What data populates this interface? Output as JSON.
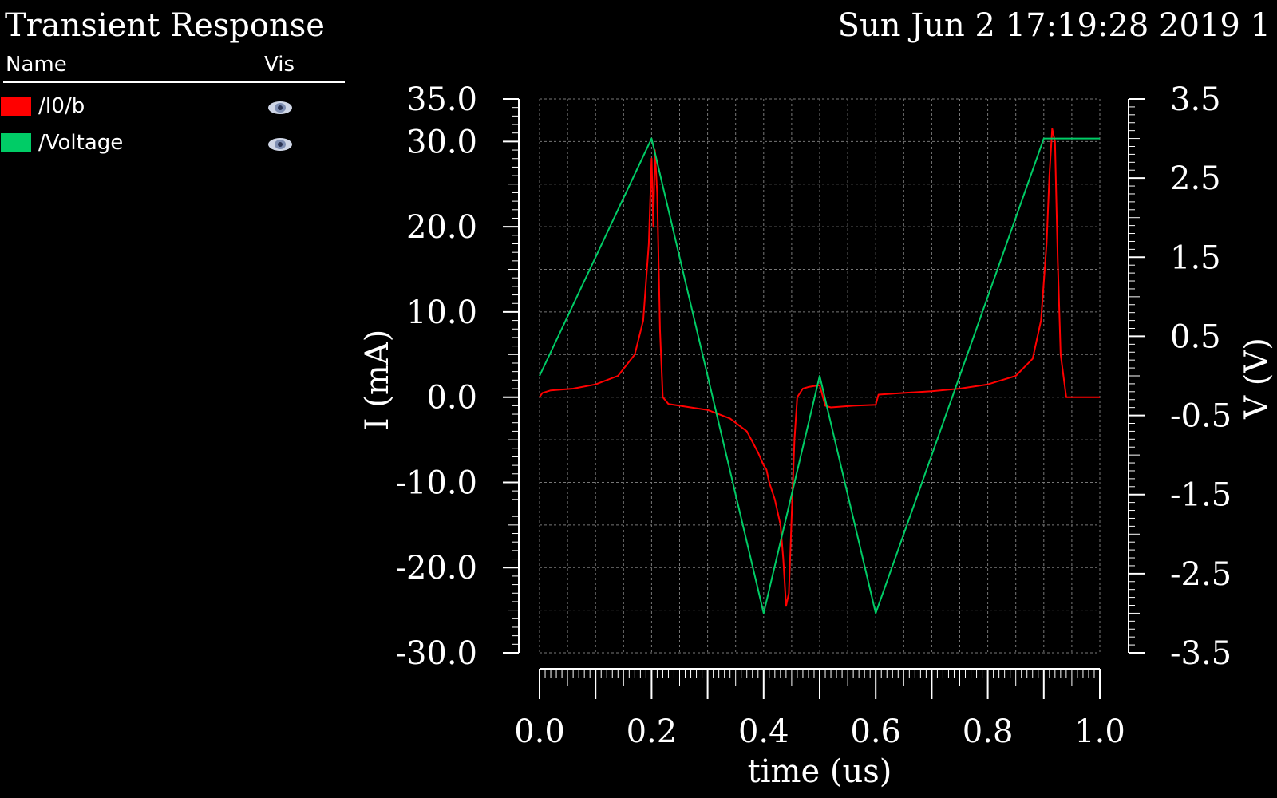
{
  "window": {
    "title": "Transient Response",
    "timestamp": "Sun Jun 2 17:19:28 2019 1"
  },
  "legend": {
    "name_header": "Name",
    "vis_header": "Vis",
    "items": [
      {
        "label": "/I0/b",
        "color": "#ff0000",
        "icon": "eye-icon"
      },
      {
        "label": "/Voltage",
        "color": "#00cc66",
        "icon": "eye-icon"
      }
    ]
  },
  "chart_data": {
    "type": "line",
    "xlabel": "time (us)",
    "ylabel_left": "I (mA)",
    "ylabel_right": "V (V)",
    "xlim": [
      0.0,
      1.0
    ],
    "ylim_left": [
      -30.0,
      35.0
    ],
    "ylim_right": [
      -3.5,
      3.5
    ],
    "x_ticks": [
      "0.0",
      "0.2",
      "0.4",
      "0.6",
      "0.8",
      "1.0"
    ],
    "y_left_ticks": [
      "35.0",
      "30.0",
      "20.0",
      "10.0",
      "0.0",
      "-10.0",
      "-20.0",
      "-30.0"
    ],
    "y_right_ticks": [
      "3.5",
      "2.5",
      "1.5",
      "0.5",
      "-0.5",
      "-1.5",
      "-2.5",
      "-3.5"
    ],
    "grid": true,
    "series": [
      {
        "name": "/I0/b",
        "axis": "left",
        "color": "#ff0000",
        "x": [
          0.0,
          0.005,
          0.02,
          0.06,
          0.1,
          0.14,
          0.17,
          0.185,
          0.195,
          0.2,
          0.203,
          0.206,
          0.21,
          0.215,
          0.22,
          0.23,
          0.25,
          0.3,
          0.34,
          0.37,
          0.39,
          0.4,
          0.405,
          0.41,
          0.42,
          0.43,
          0.435,
          0.44,
          0.445,
          0.45,
          0.455,
          0.46,
          0.47,
          0.48,
          0.49,
          0.5,
          0.51,
          0.52,
          0.56,
          0.6,
          0.605,
          0.65,
          0.7,
          0.75,
          0.8,
          0.85,
          0.88,
          0.895,
          0.905,
          0.91,
          0.915,
          0.92,
          0.925,
          0.93,
          0.94,
          0.96,
          1.0
        ],
        "y": [
          0.0,
          0.5,
          0.8,
          1.0,
          1.5,
          2.5,
          5.0,
          9.0,
          18.0,
          28.0,
          20.0,
          29.0,
          24.0,
          8.0,
          0.0,
          -0.8,
          -1.0,
          -1.5,
          -2.5,
          -4.0,
          -6.5,
          -8.0,
          -8.5,
          -10.0,
          -12.0,
          -15.0,
          -19.0,
          -24.5,
          -23.0,
          -14.0,
          -5.0,
          0.0,
          1.0,
          1.2,
          1.3,
          1.4,
          -1.0,
          -1.2,
          -1.0,
          -0.9,
          0.3,
          0.5,
          0.7,
          1.0,
          1.5,
          2.5,
          4.5,
          9.0,
          18.0,
          26.0,
          31.5,
          30.0,
          16.0,
          5.0,
          0.0,
          0.0,
          0.0
        ]
      },
      {
        "name": "/Voltage",
        "axis": "right",
        "color": "#00cc66",
        "x": [
          0.0,
          0.2,
          0.4,
          0.5,
          0.6,
          0.9,
          1.0
        ],
        "y": [
          0.0,
          3.0,
          -3.0,
          0.0,
          -3.0,
          3.0,
          3.0
        ]
      }
    ]
  }
}
